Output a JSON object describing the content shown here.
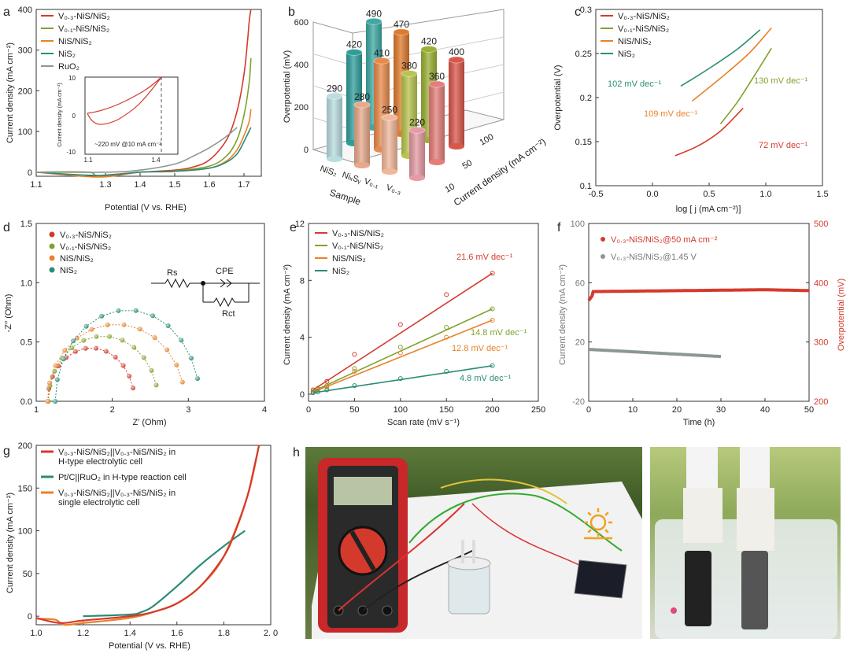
{
  "colors": {
    "red": "#d43a2c",
    "green": "#7fa22c",
    "orange": "#e8822c",
    "teal": "#2b8c76",
    "blue": "#6f8fd6",
    "gray": "#8d9696",
    "lightblue": "#b9dde0"
  },
  "panels": {
    "a": {
      "letter": "a",
      "xlabel": "Potential (V vs. RHE)",
      "ylabel": "Current density (mA cm⁻²)",
      "xticks": [
        "1.1",
        "1.3",
        "1.4",
        "1.5",
        "1.6",
        "1.7"
      ],
      "yticks": [
        "0",
        "100",
        "200",
        "300",
        "400"
      ],
      "legend": [
        "V₀.₃-NiS/NiS₂",
        "V₀.₁-NiS/NiS₂",
        "NiS/NiS₂",
        "NiS₂",
        "RuO₂"
      ],
      "inset": {
        "ylabel": "Current density (mA cm⁻²)",
        "yticks": [
          "10",
          "0",
          "-10"
        ],
        "xticks": [
          "1.1",
          "1.4"
        ],
        "annotation": "~220 mV @10 mA cm⁻²"
      }
    },
    "b": {
      "letter": "b",
      "zlabel": "Overpotential (mV)",
      "xlabel": "Sample",
      "ylabel": "Current density (mA cm⁻²)",
      "zticks": [
        "0",
        "200",
        "400",
        "600"
      ],
      "samples": [
        "NiS₂",
        "NiₓSᵧ",
        "V₀.₁",
        "V₀.₃"
      ],
      "densities": [
        "10",
        "50",
        "100"
      ]
    },
    "c": {
      "letter": "c",
      "xlabel": "log [ j (mA cm⁻²)]",
      "ylabel": "Overpotential (V)",
      "xticks": [
        "-0.5",
        "0.0",
        "0.5",
        "1.0",
        "1.5"
      ],
      "yticks": [
        "0.1",
        "0.15",
        "0.2",
        "0.25",
        "0.3"
      ],
      "legend": [
        "V₀.₃-NiS/NiS₂",
        "V₀.₁-NiS/NiS₂",
        "NiS/NiS₂",
        "NiS₂"
      ],
      "labels": [
        "102 mV dec⁻¹",
        "130 mV dec⁻¹",
        "109 mV dec⁻¹",
        "72 mV dec⁻¹"
      ]
    },
    "d": {
      "letter": "d",
      "xlabel": "Z′ (Ohm)",
      "ylabel": "-Z′′ (Ohm)",
      "xticks": [
        "1",
        "2",
        "3",
        "4"
      ],
      "yticks": [
        "0.0",
        "0.5",
        "1.0",
        "1.5"
      ],
      "legend": [
        "V₀.₃-NiS/NiS₂",
        "V₀.₁-NiS/NiS₂",
        "NiS/NiS₂",
        "NiS₂"
      ],
      "circuit": {
        "rs": "Rs",
        "cpe": "CPE",
        "rct": "Rct"
      }
    },
    "e": {
      "letter": "e",
      "xlabel": "Scan rate (mV s⁻¹)",
      "ylabel": "Current density (mA cm⁻²)",
      "xticks": [
        "0",
        "50",
        "100",
        "150",
        "200",
        "250"
      ],
      "yticks": [
        "0",
        "4",
        "8",
        "12"
      ],
      "legend": [
        "V₀.₃-NiS/NiS₂",
        "V₀.₁-NiS/NiS₂",
        "NiS/NiS₂",
        "NiS₂"
      ],
      "labels": [
        "21.6 mV dec⁻¹",
        "14.8 mV dec⁻¹",
        "12.8 mV dec⁻¹",
        "4.8 mV dec⁻¹"
      ]
    },
    "f": {
      "letter": "f",
      "xlabel": "Time (h)",
      "ylabel": "Current density (mA cm⁻²)",
      "ylabel2": "Overpotential (mV)",
      "xticks": [
        "0",
        "10",
        "20",
        "30",
        "40",
        "50"
      ],
      "yticks": [
        "-20",
        "20",
        "60",
        "100"
      ],
      "y2ticks": [
        "200",
        "300",
        "400",
        "500"
      ],
      "legend": [
        "V₀.₃-NiS/NiS₂@50  mA cm⁻²",
        "V₀.₃-NiS/NiS₂@1.45 V"
      ]
    },
    "g": {
      "letter": "g",
      "xlabel": "Potential (V vs. RHE)",
      "ylabel": "Current density (mA cm⁻²)",
      "xticks": [
        "1.0",
        "1.2",
        "1.4",
        "1.6",
        "1.8",
        "2. 0"
      ],
      "yticks": [
        "0",
        "50",
        "100",
        "150",
        "200"
      ],
      "legend": [
        [
          "V₀.₃-NiS/NiS₂||V₀.₃-NiS/NiS₂ in",
          "H-type electrolytic cell"
        ],
        [
          "Pt/C||RuO₂ in H-type reaction cell"
        ],
        [
          "V₀.₃-NiS/NiS₂||V₀.₃-NiS/NiS₂ in",
          "single electrolytic cell"
        ]
      ]
    },
    "h": {
      "letter": "h",
      "current": "I=16.4 mA",
      "voltage": "E=1.66 V",
      "solar": "Solar energy",
      "display": "16.4",
      "meter_brand": "DT-9205A"
    }
  },
  "chart_data": [
    {
      "type": "line",
      "panel": "a",
      "xlabel": "Potential (V vs. RHE)",
      "ylabel": "Current density (mA cm⁻²)",
      "xlim": [
        1.1,
        1.73
      ],
      "ylim": [
        -10,
        400
      ],
      "series": [
        {
          "name": "V₀.₃-NiS/NiS₂",
          "x": [
            1.1,
            1.25,
            1.28,
            1.4,
            1.5,
            1.55,
            1.6,
            1.65,
            1.68,
            1.7,
            1.71,
            1.715,
            1.72
          ],
          "y": [
            0,
            0,
            -8,
            0,
            5,
            12,
            30,
            80,
            150,
            240,
            320,
            370,
            400
          ]
        },
        {
          "name": "V₀.₁-NiS/NiS₂",
          "x": [
            1.1,
            1.25,
            1.28,
            1.4,
            1.5,
            1.6,
            1.65,
            1.68,
            1.7,
            1.715,
            1.72
          ],
          "y": [
            0,
            0,
            -10,
            0,
            3,
            15,
            40,
            80,
            140,
            220,
            280
          ]
        },
        {
          "name": "NiS/NiS₂",
          "x": [
            1.1,
            1.28,
            1.4,
            1.5,
            1.6,
            1.65,
            1.68,
            1.7,
            1.715,
            1.72
          ],
          "y": [
            0,
            -12,
            0,
            2,
            10,
            28,
            55,
            90,
            125,
            155
          ]
        },
        {
          "name": "NiS₂",
          "x": [
            1.1,
            1.28,
            1.4,
            1.5,
            1.6,
            1.65,
            1.68,
            1.7,
            1.72
          ],
          "y": [
            0,
            -8,
            0,
            2,
            10,
            25,
            45,
            75,
            110
          ]
        },
        {
          "name": "RuO₂",
          "x": [
            1.1,
            1.3,
            1.4,
            1.5,
            1.55,
            1.6,
            1.64,
            1.68
          ],
          "y": [
            0,
            0,
            5,
            20,
            38,
            60,
            82,
            110
          ]
        }
      ]
    },
    {
      "type": "bar",
      "panel": "b",
      "ylabel": "Overpotential (mV)",
      "categories": [
        "NiS₂",
        "NiₓSᵧ",
        "V₀.₁",
        "V₀.₃"
      ],
      "series": [
        {
          "name": "10",
          "values": [
            290,
            280,
            250,
            220
          ]
        },
        {
          "name": "50",
          "values": [
            420,
            410,
            380,
            360
          ]
        },
        {
          "name": "100",
          "values": [
            490,
            470,
            420,
            400
          ]
        }
      ]
    },
    {
      "type": "line",
      "panel": "c",
      "xlabel": "log [ j (mA cm⁻²)]",
      "ylabel": "Overpotential (V)",
      "xlim": [
        -0.5,
        1.5
      ],
      "ylim": [
        0.1,
        0.3
      ],
      "series": [
        {
          "name": "V₀.₃-NiS/NiS₂",
          "x": [
            0.2,
            0.4,
            0.6,
            0.8
          ],
          "y": [
            0.134,
            0.145,
            0.162,
            0.188
          ]
        },
        {
          "name": "V₀.₁-NiS/NiS₂",
          "x": [
            0.6,
            0.75,
            0.9,
            1.05
          ],
          "y": [
            0.17,
            0.195,
            0.225,
            0.256
          ]
        },
        {
          "name": "NiS/NiS₂",
          "x": [
            0.35,
            0.6,
            0.85,
            1.05
          ],
          "y": [
            0.196,
            0.222,
            0.25,
            0.279
          ]
        },
        {
          "name": "NiS₂",
          "x": [
            0.25,
            0.5,
            0.75,
            0.95
          ],
          "y": [
            0.213,
            0.233,
            0.255,
            0.277
          ]
        }
      ]
    },
    {
      "type": "scatter",
      "panel": "d",
      "xlabel": "Z′ (Ohm)",
      "ylabel": "-Z′′ (Ohm)",
      "xlim": [
        1,
        4
      ],
      "ylim": [
        0,
        1.5
      ],
      "series": [
        {
          "name": "V₀.₃-NiS/NiS₂",
          "center": 1.72,
          "radius": 0.57,
          "peak": 0.45
        },
        {
          "name": "V₀.₁-NiS/NiS₂",
          "center": 1.88,
          "radius": 0.72,
          "peak": 0.55
        },
        {
          "name": "NiS/NiS₂",
          "center": 2.05,
          "radius": 0.9,
          "peak": 0.65
        },
        {
          "name": "NiS₂",
          "center": 2.2,
          "radius": 0.95,
          "peak": 0.77
        }
      ]
    },
    {
      "type": "scatter",
      "panel": "e",
      "xlabel": "Scan rate (mV s⁻¹)",
      "ylabel": "Current density (mA cm⁻²)",
      "xlim": [
        0,
        250
      ],
      "ylim": [
        -0.5,
        12
      ],
      "x": [
        5,
        10,
        20,
        50,
        100,
        150,
        200
      ],
      "series": [
        {
          "name": "V₀.₃-NiS/NiS₂",
          "y": [
            0.3,
            0.4,
            0.9,
            2.8,
            4.9,
            7.0,
            8.5
          ]
        },
        {
          "name": "V₀.₁-NiS/NiS₂",
          "y": [
            0.2,
            0.35,
            0.6,
            1.8,
            3.3,
            4.7,
            6.0
          ]
        },
        {
          "name": "NiS/NiS₂",
          "y": [
            0.15,
            0.3,
            0.5,
            1.6,
            2.9,
            4.0,
            5.2
          ]
        },
        {
          "name": "NiS₂",
          "y": [
            0.1,
            0.15,
            0.3,
            0.6,
            1.1,
            1.6,
            2.0
          ]
        }
      ]
    },
    {
      "type": "line",
      "panel": "f",
      "xlabel": "Time (h)",
      "ylabel": "Current density (mA cm⁻²)",
      "ylabel2": "Overpotential (mV)",
      "xlim": [
        0,
        50
      ],
      "ylim": [
        -20,
        100
      ],
      "y2lim": [
        200,
        500
      ],
      "series": [
        {
          "name": "V₀.₃-NiS/NiS₂@50  mA cm⁻²",
          "axis": "right",
          "x": [
            0,
            1,
            5,
            10,
            20,
            30,
            40,
            50
          ],
          "y": [
            370,
            380,
            385,
            387,
            388,
            389,
            390,
            388
          ]
        },
        {
          "name": "V₀.₃-NiS/NiS₂@1.45 V",
          "axis": "left",
          "x": [
            0,
            5,
            10,
            20,
            30
          ],
          "y": [
            15,
            14,
            13,
            12,
            10
          ]
        }
      ]
    },
    {
      "type": "line",
      "panel": "g",
      "xlabel": "Potential (V vs. RHE)",
      "ylabel": "Current density (mA cm⁻²)",
      "xlim": [
        1.0,
        2.0
      ],
      "ylim": [
        -10,
        200
      ],
      "series": [
        {
          "name": "H-type electrolytic cell",
          "x": [
            1.0,
            1.1,
            1.2,
            1.4,
            1.5,
            1.6,
            1.7,
            1.8,
            1.85,
            1.9,
            1.93,
            1.95
          ],
          "y": [
            -2,
            -8,
            -5,
            0,
            5,
            15,
            35,
            70,
            100,
            140,
            175,
            200
          ]
        },
        {
          "name": "Pt/C||RuO₂",
          "x": [
            1.2,
            1.4,
            1.45,
            1.5,
            1.6,
            1.7,
            1.8,
            1.89
          ],
          "y": [
            0,
            2,
            5,
            12,
            35,
            60,
            82,
            100
          ]
        },
        {
          "name": "single electrolytic cell",
          "x": [
            1.0,
            1.08,
            1.12,
            1.2,
            1.4,
            1.5,
            1.6,
            1.7,
            1.8,
            1.9,
            1.95
          ],
          "y": [
            -3,
            -4,
            -10,
            -8,
            -2,
            5,
            15,
            35,
            70,
            140,
            200
          ]
        }
      ]
    }
  ]
}
